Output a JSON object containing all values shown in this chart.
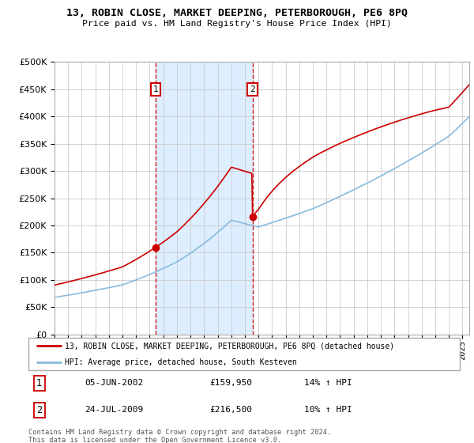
{
  "title": "13, ROBIN CLOSE, MARKET DEEPING, PETERBOROUGH, PE6 8PQ",
  "subtitle": "Price paid vs. HM Land Registry's House Price Index (HPI)",
  "ylim": [
    0,
    500000
  ],
  "xlim_start": 1995.0,
  "xlim_end": 2025.5,
  "purchase1_date": 2002.43,
  "purchase1_price": 159950,
  "purchase2_date": 2009.56,
  "purchase2_price": 216500,
  "purchase_color": "#cc0000",
  "hpi_color": "#88bbdd",
  "bg_shaded_color": "#ddeeff",
  "legend_label1": "13, ROBIN CLOSE, MARKET DEEPING, PETERBOROUGH, PE6 8PQ (detached house)",
  "legend_label2": "HPI: Average price, detached house, South Kesteven",
  "annotation1_label": "1",
  "annotation2_label": "2",
  "table_row1": [
    "1",
    "05-JUN-2002",
    "£159,950",
    "14% ↑ HPI"
  ],
  "table_row2": [
    "2",
    "24-JUL-2009",
    "£216,500",
    "10% ↑ HPI"
  ],
  "footnote": "Contains HM Land Registry data © Crown copyright and database right 2024.\nThis data is licensed under the Open Government Licence v3.0.",
  "grid_color": "#cccccc",
  "background_color": "#ffffff"
}
